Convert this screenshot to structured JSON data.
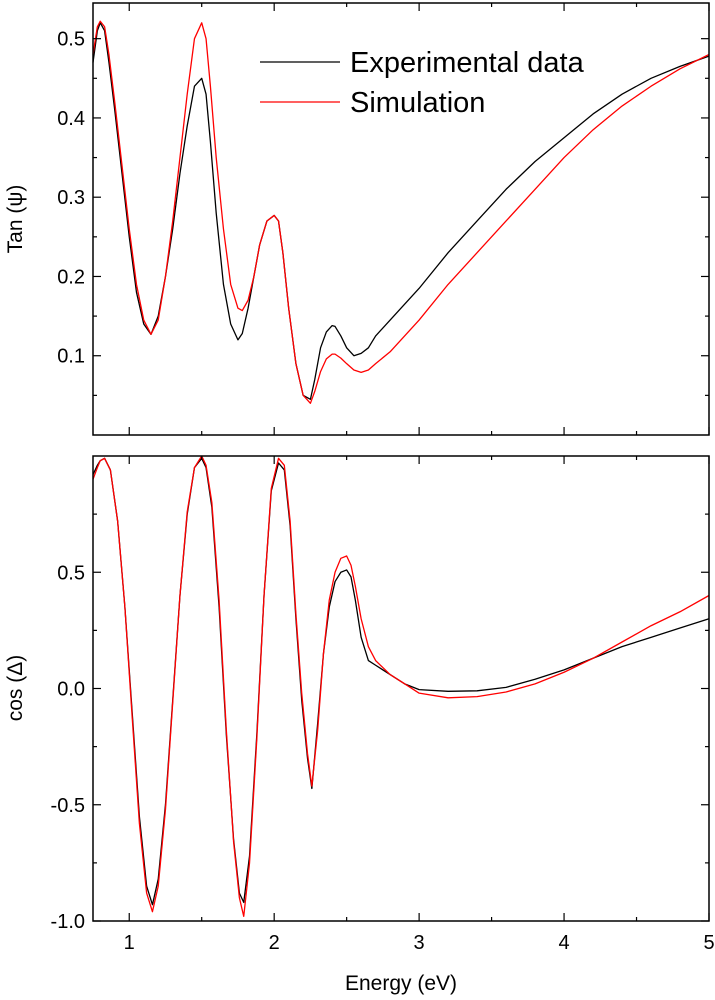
{
  "colors": {
    "experimental": "#000000",
    "simulation": "#ff0000"
  },
  "chart_data": [
    {
      "type": "line",
      "title": "",
      "xlabel": "",
      "ylabel": "Tan (ψ)",
      "xlim": [
        0.75,
        5.0
      ],
      "ylim": [
        0.0,
        0.545
      ],
      "xticks": [
        1,
        2,
        3,
        4,
        5
      ],
      "yticks": [
        0.1,
        0.2,
        0.3,
        0.4,
        0.5
      ],
      "ytick_labels": [
        "0.1",
        "0.2",
        "0.3",
        "0.4",
        "0.5"
      ],
      "grid": false,
      "legend": {
        "position": "top-right",
        "entries": [
          "Experimental data",
          "Simulation"
        ]
      },
      "series": [
        {
          "name": "Experimental data",
          "color": "#000000",
          "x": [
            0.75,
            0.78,
            0.8,
            0.83,
            0.86,
            0.9,
            0.95,
            1.0,
            1.05,
            1.1,
            1.15,
            1.2,
            1.25,
            1.3,
            1.35,
            1.4,
            1.45,
            1.5,
            1.53,
            1.56,
            1.6,
            1.65,
            1.7,
            1.75,
            1.78,
            1.82,
            1.86,
            1.9,
            1.95,
            2.0,
            2.03,
            2.06,
            2.1,
            2.15,
            2.2,
            2.25,
            2.28,
            2.32,
            2.36,
            2.4,
            2.42,
            2.46,
            2.5,
            2.55,
            2.6,
            2.65,
            2.7,
            2.8,
            2.9,
            3.0,
            3.2,
            3.4,
            3.6,
            3.8,
            4.0,
            4.2,
            4.4,
            4.6,
            4.8,
            5.0
          ],
          "values": [
            0.47,
            0.51,
            0.52,
            0.51,
            0.47,
            0.41,
            0.33,
            0.25,
            0.18,
            0.14,
            0.127,
            0.15,
            0.2,
            0.26,
            0.33,
            0.39,
            0.44,
            0.45,
            0.43,
            0.37,
            0.28,
            0.19,
            0.14,
            0.12,
            0.128,
            0.16,
            0.2,
            0.24,
            0.27,
            0.277,
            0.27,
            0.23,
            0.16,
            0.09,
            0.05,
            0.045,
            0.07,
            0.11,
            0.13,
            0.138,
            0.137,
            0.125,
            0.11,
            0.1,
            0.103,
            0.11,
            0.125,
            0.145,
            0.165,
            0.185,
            0.23,
            0.27,
            0.31,
            0.345,
            0.375,
            0.405,
            0.43,
            0.45,
            0.465,
            0.478
          ]
        },
        {
          "name": "Simulation",
          "color": "#ff0000",
          "x": [
            0.75,
            0.78,
            0.8,
            0.83,
            0.86,
            0.9,
            0.95,
            1.0,
            1.05,
            1.1,
            1.15,
            1.2,
            1.25,
            1.3,
            1.35,
            1.4,
            1.45,
            1.5,
            1.53,
            1.56,
            1.6,
            1.65,
            1.7,
            1.75,
            1.78,
            1.82,
            1.86,
            1.9,
            1.95,
            2.0,
            2.03,
            2.06,
            2.1,
            2.15,
            2.2,
            2.25,
            2.28,
            2.32,
            2.36,
            2.4,
            2.42,
            2.46,
            2.5,
            2.55,
            2.6,
            2.65,
            2.7,
            2.8,
            2.9,
            3.0,
            3.2,
            3.4,
            3.6,
            3.8,
            4.0,
            4.2,
            4.4,
            4.6,
            4.8,
            5.0
          ],
          "values": [
            0.48,
            0.515,
            0.522,
            0.515,
            0.48,
            0.42,
            0.34,
            0.26,
            0.19,
            0.145,
            0.127,
            0.145,
            0.2,
            0.27,
            0.35,
            0.43,
            0.5,
            0.52,
            0.5,
            0.44,
            0.35,
            0.26,
            0.19,
            0.16,
            0.157,
            0.17,
            0.2,
            0.24,
            0.27,
            0.277,
            0.27,
            0.23,
            0.16,
            0.09,
            0.05,
            0.04,
            0.055,
            0.08,
            0.096,
            0.102,
            0.102,
            0.097,
            0.09,
            0.082,
            0.079,
            0.082,
            0.09,
            0.105,
            0.125,
            0.145,
            0.19,
            0.23,
            0.27,
            0.31,
            0.35,
            0.385,
            0.415,
            0.44,
            0.462,
            0.48
          ]
        }
      ]
    },
    {
      "type": "line",
      "title": "",
      "xlabel": "Energy (eV)",
      "ylabel": "cos (Δ)",
      "xlim": [
        0.75,
        5.0
      ],
      "ylim": [
        -1.0,
        1.0
      ],
      "xticks": [
        1,
        2,
        3,
        4,
        5
      ],
      "xtick_labels": [
        "1",
        "2",
        "3",
        "4",
        "5"
      ],
      "yticks": [
        -1.0,
        -0.5,
        0.0,
        0.5
      ],
      "ytick_labels": [
        "-1.0",
        "-0.5",
        "0.0",
        "0.5"
      ],
      "grid": false,
      "series": [
        {
          "name": "Experimental data",
          "color": "#000000",
          "x": [
            0.75,
            0.78,
            0.8,
            0.83,
            0.87,
            0.92,
            0.97,
            1.02,
            1.07,
            1.12,
            1.16,
            1.2,
            1.25,
            1.3,
            1.35,
            1.4,
            1.45,
            1.5,
            1.53,
            1.57,
            1.62,
            1.67,
            1.72,
            1.76,
            1.79,
            1.83,
            1.88,
            1.93,
            1.98,
            2.03,
            2.07,
            2.11,
            2.15,
            2.19,
            2.23,
            2.26,
            2.3,
            2.34,
            2.38,
            2.42,
            2.46,
            2.5,
            2.53,
            2.56,
            2.6,
            2.65,
            2.7,
            2.8,
            2.9,
            3.0,
            3.2,
            3.4,
            3.6,
            3.8,
            4.0,
            4.2,
            4.4,
            4.6,
            4.8,
            5.0
          ],
          "values": [
            0.92,
            0.96,
            0.98,
            0.99,
            0.94,
            0.72,
            0.35,
            -0.1,
            -0.55,
            -0.85,
            -0.93,
            -0.82,
            -0.5,
            -0.05,
            0.4,
            0.75,
            0.95,
            0.99,
            0.95,
            0.78,
            0.35,
            -0.2,
            -0.65,
            -0.88,
            -0.92,
            -0.72,
            -0.2,
            0.4,
            0.85,
            0.97,
            0.94,
            0.7,
            0.3,
            -0.05,
            -0.3,
            -0.43,
            -0.15,
            0.15,
            0.35,
            0.46,
            0.5,
            0.51,
            0.48,
            0.38,
            0.22,
            0.12,
            0.1,
            0.06,
            0.02,
            -0.005,
            -0.012,
            -0.01,
            0.005,
            0.04,
            0.08,
            0.13,
            0.18,
            0.22,
            0.26,
            0.3
          ]
        },
        {
          "name": "Simulation",
          "color": "#ff0000",
          "x": [
            0.75,
            0.78,
            0.8,
            0.83,
            0.87,
            0.92,
            0.97,
            1.02,
            1.07,
            1.12,
            1.16,
            1.2,
            1.25,
            1.3,
            1.35,
            1.4,
            1.45,
            1.5,
            1.53,
            1.57,
            1.62,
            1.67,
            1.72,
            1.76,
            1.79,
            1.83,
            1.88,
            1.93,
            1.98,
            2.03,
            2.07,
            2.11,
            2.15,
            2.19,
            2.23,
            2.26,
            2.3,
            2.34,
            2.38,
            2.42,
            2.46,
            2.5,
            2.53,
            2.56,
            2.6,
            2.65,
            2.7,
            2.8,
            2.9,
            3.0,
            3.2,
            3.4,
            3.6,
            3.8,
            4.0,
            4.2,
            4.4,
            4.6,
            4.8,
            5.0
          ],
          "values": [
            0.9,
            0.95,
            0.98,
            0.99,
            0.94,
            0.72,
            0.35,
            -0.12,
            -0.58,
            -0.88,
            -0.96,
            -0.85,
            -0.52,
            -0.06,
            0.4,
            0.76,
            0.95,
            1.0,
            0.96,
            0.8,
            0.38,
            -0.18,
            -0.66,
            -0.9,
            -0.98,
            -0.75,
            -0.22,
            0.4,
            0.86,
            0.99,
            0.96,
            0.72,
            0.32,
            -0.02,
            -0.28,
            -0.42,
            -0.18,
            0.15,
            0.38,
            0.5,
            0.56,
            0.57,
            0.53,
            0.44,
            0.3,
            0.18,
            0.12,
            0.06,
            0.02,
            -0.02,
            -0.04,
            -0.035,
            -0.015,
            0.02,
            0.07,
            0.13,
            0.2,
            0.27,
            0.33,
            0.4
          ]
        }
      ]
    }
  ]
}
